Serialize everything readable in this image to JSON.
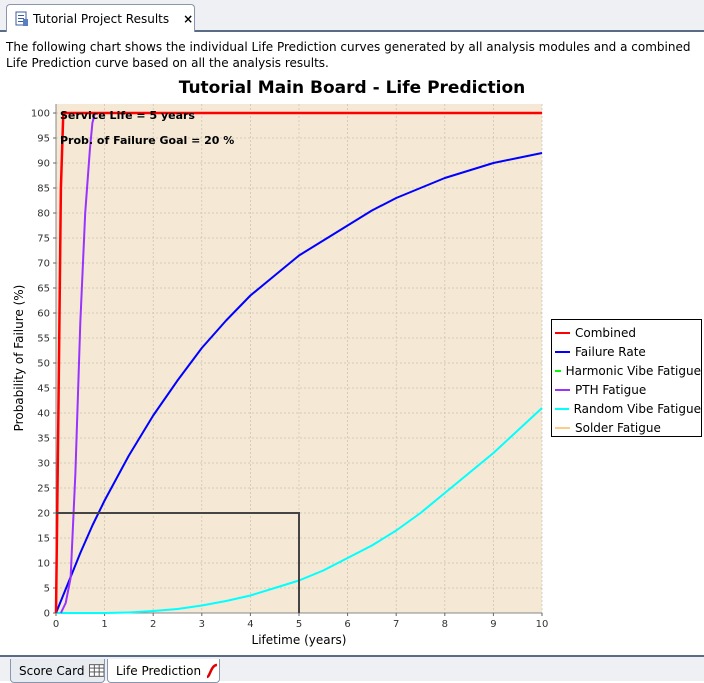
{
  "top_tab": {
    "label": "Tutorial Project Results",
    "close": "×"
  },
  "intro_text": "The following chart shows the individual Life Prediction curves generated by all analysis modules and a combined Life Prediction curve based on all the analysis results.",
  "bottom_tabs": [
    {
      "label": "Score Card",
      "icon": "table-icon"
    },
    {
      "label": "Life Prediction",
      "icon": "curve-icon"
    }
  ],
  "colors": {
    "plot_background": "#f5e9d6",
    "combined": "#ff0000",
    "failure_rate": "#0000ff",
    "harmonic_vibe": "#00ff00",
    "pth": "#9933ff",
    "random_vibe": "#00ffff",
    "solder": "#ffcc88"
  },
  "chart_data": {
    "type": "line",
    "title": "Tutorial Main Board - Life Prediction",
    "xlabel": "Lifetime (years)",
    "ylabel": "Probability of Failure (%)",
    "xlim": [
      0,
      10
    ],
    "ylim": [
      0,
      100
    ],
    "xticks": [
      "0",
      "1",
      "2",
      "3",
      "4",
      "5",
      "6",
      "7",
      "8",
      "9",
      "10"
    ],
    "yticks": [
      "0",
      "5",
      "10",
      "15",
      "20",
      "25",
      "30",
      "35",
      "40",
      "45",
      "50",
      "55",
      "60",
      "65",
      "70",
      "75",
      "80",
      "85",
      "90",
      "95",
      "100"
    ],
    "grid": true,
    "legend_position": "right",
    "annotations": [
      "Service Life = 5 years",
      "Prob. of Failure Goal = 20 %"
    ],
    "reference_lines": {
      "service_life_years": 5,
      "failure_goal_percent": 20
    },
    "series": [
      {
        "name": "Combined",
        "x": [
          0,
          0.05,
          0.1,
          0.15,
          0.2,
          10
        ],
        "y": [
          0,
          40,
          85,
          100,
          100,
          100
        ]
      },
      {
        "name": "Failure Rate",
        "x": [
          0,
          0.25,
          0.5,
          0.75,
          1,
          1.5,
          2,
          2.5,
          3,
          3.5,
          4,
          4.5,
          5,
          5.5,
          6,
          6.5,
          7,
          7.5,
          8,
          8.5,
          9,
          9.5,
          10
        ],
        "y": [
          0,
          6,
          12,
          17.5,
          22.5,
          31.5,
          39.5,
          46.5,
          53,
          58.5,
          63.5,
          67.5,
          71.5,
          74.5,
          77.5,
          80.5,
          83,
          85,
          87,
          88.5,
          90,
          91,
          92
        ]
      },
      {
        "name": "Harmonic Vibe Fatigue",
        "x": [],
        "y": []
      },
      {
        "name": "PTH Fatigue",
        "x": [
          0.1,
          0.2,
          0.3,
          0.4,
          0.5,
          0.6,
          0.7,
          0.75,
          0.8
        ],
        "y": [
          0,
          2,
          7,
          28,
          58,
          80,
          93,
          98,
          100
        ]
      },
      {
        "name": "Random Vibe Fatigue",
        "x": [
          0,
          0.5,
          1,
          1.5,
          2,
          2.5,
          3,
          3.5,
          4,
          4.5,
          5,
          5.5,
          6,
          6.5,
          7,
          7.5,
          8,
          8.5,
          9,
          9.5,
          10
        ],
        "y": [
          0,
          0,
          0,
          0.1,
          0.4,
          0.8,
          1.5,
          2.4,
          3.5,
          5,
          6.5,
          8.5,
          11,
          13.5,
          16.5,
          20,
          24,
          28,
          32,
          36.5,
          41
        ]
      },
      {
        "name": "Solder Fatigue",
        "x": [],
        "y": []
      }
    ]
  }
}
